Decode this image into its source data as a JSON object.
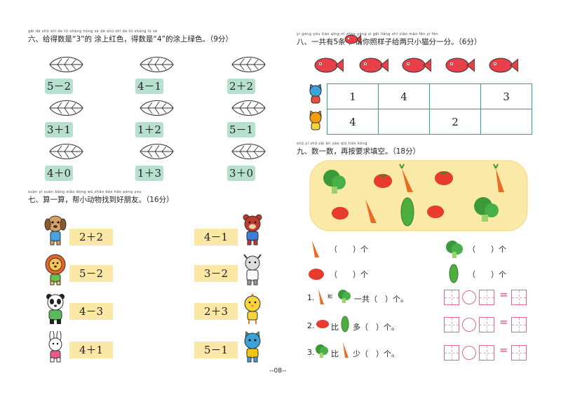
{
  "section6": {
    "title": "六、给得数是“3”的 涂上红色，得数是“4”的涂上绿色。（9分）",
    "pinyin": "gěi dé shù shì   de   tú shàng hóng sè   dé shù shì   de tú shàng lǜ sè",
    "leaf_icon": "leaf-icon",
    "expressions": [
      "5－2",
      "4－1",
      "2＋2",
      "3＋1",
      "1＋2",
      "5－1",
      "4＋0",
      "1＋3",
      "3＋0"
    ]
  },
  "section7": {
    "title": "七、算一算，帮小动物找到好朋友。（16分）",
    "pinyin": "suàn yi suàn  bāng xiǎo dòng wù zhǎo dào hǎo péng you",
    "left": [
      "2＋2",
      "5－2",
      "4－3",
      "4＋1"
    ],
    "right": [
      "4－1",
      "3－2",
      "2＋3",
      "5－1"
    ],
    "left_animals": [
      "dog-icon",
      "lion-icon",
      "panda-icon",
      "rabbit-icon"
    ],
    "right_animals": [
      "bear-icon",
      "goat-icon",
      "chick-icon",
      "cat-icon"
    ]
  },
  "section8": {
    "title": "八、一共有5条 ，请你照样子给两只小猫分一分。（6分）",
    "pinyin": "yí gòng yǒu   tiáo   qǐng nǐ zhào yàng zi gěi liǎng zhī xiǎo māo fēn yi fēn",
    "fish_icon": "fish-icon",
    "row1": [
      "1",
      "4",
      "",
      "3"
    ],
    "row2": [
      "4",
      "",
      "2",
      ""
    ]
  },
  "section9": {
    "title": "九、数一数，再按要求填空。（18分）",
    "pinyin": "shǔ yi shǔ  zài àn yāo qiú tián kòng",
    "paren_unit": "（　　）个",
    "q1": "1.",
    "q1_mid": "和",
    "q1_end": "一共（　）个。",
    "q2": "2.",
    "q2_mid": "比",
    "q2_end": "多（　）个。",
    "q3": "3.",
    "q3_mid": "比",
    "q3_end": "少（　）个。",
    "equals": "="
  },
  "page_number": "--08--"
}
